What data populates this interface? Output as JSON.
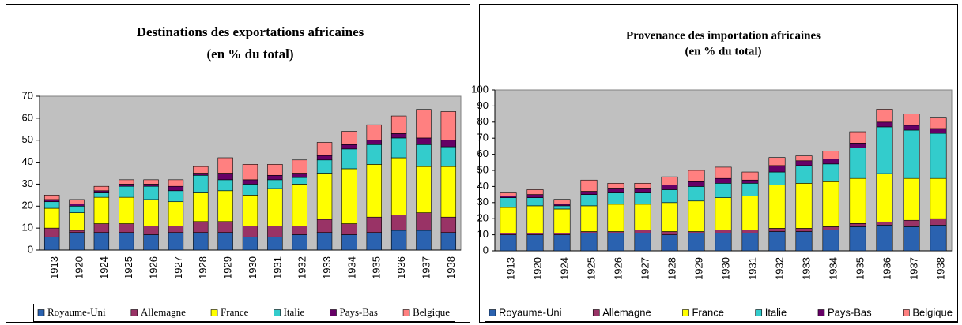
{
  "chart_data": [
    {
      "type": "bar",
      "stacked": true,
      "title": "Destinations des exportations africaines",
      "subtitle": "(en % du total)",
      "categories": [
        "1913",
        "1920",
        "1924",
        "1925",
        "1926",
        "1927",
        "1928",
        "1929",
        "1930",
        "1931",
        "1932",
        "1933",
        "1934",
        "1935",
        "1936",
        "1937",
        "1938"
      ],
      "series": [
        {
          "name": "Royaume-Uni",
          "color": "#2a62b0",
          "values": [
            6,
            8,
            8,
            8,
            7,
            8,
            8,
            8,
            6,
            6,
            7,
            8,
            7,
            8,
            9,
            9,
            8
          ]
        },
        {
          "name": "Allemagne",
          "color": "#993366",
          "values": [
            4,
            1,
            4,
            4,
            4,
            3,
            5,
            5,
            5,
            5,
            4,
            6,
            5,
            7,
            7,
            8,
            7
          ]
        },
        {
          "name": "France",
          "color": "#ffff00",
          "values": [
            9,
            8,
            12,
            12,
            12,
            11,
            13,
            14,
            14,
            17,
            19,
            21,
            25,
            24,
            26,
            21,
            23
          ]
        },
        {
          "name": "Italie",
          "color": "#33cccc",
          "values": [
            3,
            3,
            2,
            5,
            6,
            5,
            8,
            5,
            5,
            4,
            3,
            6,
            9,
            9,
            9,
            10,
            9
          ]
        },
        {
          "name": "Pays-Bas",
          "color": "#660066",
          "values": [
            1,
            1,
            1,
            1,
            1,
            2,
            1,
            3,
            2,
            2,
            2,
            2,
            2,
            2,
            2,
            3,
            3
          ]
        },
        {
          "name": "Belgique",
          "color": "#ff8080",
          "values": [
            2,
            2,
            2,
            2,
            2,
            3,
            3,
            7,
            7,
            5,
            6,
            6,
            6,
            7,
            8,
            13,
            13
          ]
        }
      ],
      "ylim": [
        0,
        70
      ],
      "yticks": [
        0,
        10,
        20,
        30,
        40,
        50,
        60,
        70
      ],
      "grid": false,
      "legend": "bottom"
    },
    {
      "type": "bar",
      "stacked": true,
      "title": "Provenance des importation africaines",
      "subtitle": "(en % du total)",
      "categories": [
        "1913",
        "1920",
        "1924",
        "1925",
        "1926",
        "1927",
        "1928",
        "1929",
        "1930",
        "1931",
        "1932",
        "1933",
        "1934",
        "1935",
        "1936",
        "1937",
        "1938"
      ],
      "series": [
        {
          "name": "Royaume-Uni",
          "color": "#2a62b0",
          "values": [
            10,
            10,
            10,
            11,
            11,
            11,
            10,
            11,
            11,
            11,
            12,
            12,
            13,
            15,
            16,
            15,
            16
          ]
        },
        {
          "name": "Allemagne",
          "color": "#993366",
          "values": [
            1,
            1,
            1,
            1,
            1,
            2,
            2,
            1,
            2,
            2,
            2,
            2,
            2,
            2,
            2,
            4,
            4
          ]
        },
        {
          "name": "France",
          "color": "#ffff00",
          "values": [
            16,
            17,
            15,
            16,
            17,
            16,
            18,
            19,
            20,
            21,
            27,
            28,
            28,
            28,
            30,
            26,
            25
          ]
        },
        {
          "name": "Italie",
          "color": "#33cccc",
          "values": [
            6,
            5,
            2,
            7,
            7,
            7,
            8,
            9,
            9,
            8,
            8,
            11,
            11,
            19,
            29,
            30,
            28
          ]
        },
        {
          "name": "Pays-Bas",
          "color": "#660066",
          "values": [
            1,
            2,
            1,
            2,
            3,
            3,
            3,
            3,
            3,
            2,
            4,
            3,
            3,
            3,
            3,
            3,
            3
          ]
        },
        {
          "name": "Belgique",
          "color": "#ff8080",
          "values": [
            2,
            3,
            3,
            7,
            3,
            3,
            5,
            7,
            7,
            5,
            5,
            3,
            5,
            7,
            8,
            7,
            7
          ]
        }
      ],
      "ylim": [
        0,
        100
      ],
      "yticks": [
        0,
        10,
        20,
        30,
        40,
        50,
        60,
        70,
        80,
        90,
        100
      ],
      "grid": false,
      "legend": "bottom"
    }
  ]
}
